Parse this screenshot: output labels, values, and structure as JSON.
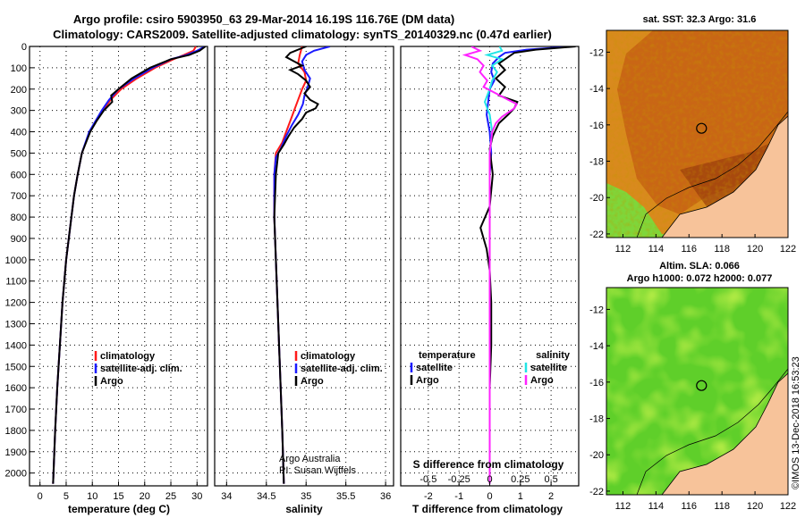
{
  "header": {
    "line1": "Argo profile: csiro 5903950_63 29-Mar-2014 16.19S 116.76E (DM data)",
    "line2": "Climatology: CARS2009. Satellite-adjusted climatology: synTS_20140329.nc (0.47d earlier)"
  },
  "colors": {
    "argo": "#000000",
    "climatology": "#ff1a1a",
    "satellite": "#1a1aff",
    "sal_satellite": "#22e5e5",
    "sal_argo": "#ff22ff",
    "sea_orange": "#d2691e",
    "land": "#f7c39a",
    "sla_green": "#66cc22"
  },
  "chart_data": [
    {
      "type": "line",
      "name": "temperature",
      "xlabel": "temperature (deg C)",
      "ylabel": "",
      "xlim": [
        -2,
        32
      ],
      "ylim": [
        2060,
        0
      ],
      "xticks": [
        0,
        5,
        10,
        15,
        20,
        25,
        30
      ],
      "yticks": [
        0,
        100,
        200,
        300,
        400,
        500,
        600,
        700,
        800,
        900,
        1000,
        1100,
        1200,
        1300,
        1400,
        1500,
        1600,
        1700,
        1800,
        1900,
        2000
      ],
      "legend": [
        "climatology",
        "satellite-adj. clim.",
        "Argo"
      ],
      "series": [
        {
          "name": "climatology",
          "color": "climatology",
          "depth": [
            0,
            20,
            40,
            60,
            100,
            150,
            200,
            250,
            300,
            400,
            500,
            600,
            700,
            800,
            1000,
            1200,
            1400,
            1600,
            1800,
            2050
          ],
          "values": [
            29.8,
            29.3,
            27.5,
            25.5,
            22.0,
            18.5,
            15.5,
            13.5,
            12.0,
            9.5,
            8.0,
            7.2,
            6.5,
            6.0,
            5.0,
            4.3,
            3.8,
            3.3,
            2.9,
            2.5
          ]
        },
        {
          "name": "satellite-adj. clim.",
          "color": "satellite",
          "depth": [
            0,
            20,
            40,
            60,
            100,
            150,
            200,
            250,
            300,
            400,
            500,
            600,
            700,
            800,
            1000,
            1200,
            1400,
            1600,
            1800,
            2050
          ],
          "values": [
            31.5,
            30.0,
            28.0,
            25.0,
            21.5,
            18.0,
            15.0,
            13.2,
            11.8,
            9.4,
            8.0,
            7.2,
            6.5,
            6.0,
            5.0,
            4.3,
            3.8,
            3.3,
            2.9,
            2.5
          ]
        },
        {
          "name": "Argo",
          "color": "argo",
          "depth": [
            0,
            20,
            40,
            60,
            100,
            150,
            200,
            230,
            260,
            300,
            350,
            400,
            500,
            600,
            700,
            800,
            1000,
            1200,
            1400,
            1600,
            1800,
            2050
          ],
          "values": [
            31.6,
            30.5,
            28.5,
            25.0,
            21.0,
            17.5,
            15.0,
            13.6,
            13.8,
            12.2,
            10.8,
            9.6,
            8.0,
            7.2,
            6.5,
            6.0,
            5.0,
            4.3,
            3.8,
            3.3,
            2.9,
            2.5
          ]
        }
      ]
    },
    {
      "type": "line",
      "name": "salinity",
      "xlabel": "salinity",
      "xlim": [
        33.85,
        36.1
      ],
      "ylim": [
        2060,
        0
      ],
      "xticks": [
        34,
        34.5,
        35,
        35.5,
        36
      ],
      "legend": [
        "climatology",
        "satellite-adj. clim.",
        "Argo"
      ],
      "series": [
        {
          "name": "climatology",
          "color": "climatology",
          "depth": [
            0,
            40,
            80,
            120,
            160,
            200,
            250,
            300,
            350,
            400,
            450,
            500,
            600,
            800,
            1000,
            1200,
            1400,
            1600,
            1800,
            2050
          ],
          "values": [
            34.95,
            34.92,
            34.9,
            34.98,
            35.0,
            34.95,
            34.9,
            34.85,
            34.8,
            34.75,
            34.7,
            34.62,
            34.6,
            34.6,
            34.62,
            34.64,
            34.66,
            34.68,
            34.7,
            34.72
          ]
        },
        {
          "name": "satellite-adj. clim.",
          "color": "satellite",
          "depth": [
            0,
            20,
            40,
            70,
            110,
            150,
            190,
            230,
            270,
            320,
            370,
            420,
            480,
            520,
            600,
            800,
            1000,
            1200,
            1400,
            1600,
            1800,
            2050
          ],
          "values": [
            35.3,
            35.1,
            35.0,
            34.95,
            34.98,
            35.05,
            35.02,
            34.98,
            34.96,
            34.9,
            34.82,
            34.75,
            34.68,
            34.62,
            34.6,
            34.6,
            34.62,
            34.64,
            34.66,
            34.68,
            34.7,
            34.72
          ]
        },
        {
          "name": "Argo",
          "color": "argo",
          "depth": [
            0,
            30,
            50,
            70,
            90,
            110,
            130,
            160,
            190,
            220,
            250,
            270,
            290,
            310,
            340,
            380,
            420,
            460,
            500,
            600,
            800,
            1000,
            1200,
            1400,
            1600,
            1800,
            2050
          ],
          "values": [
            35.0,
            34.8,
            34.75,
            34.85,
            34.95,
            34.8,
            34.9,
            35.0,
            35.05,
            34.98,
            35.05,
            35.15,
            35.12,
            35.0,
            34.95,
            34.85,
            34.78,
            34.72,
            34.65,
            34.62,
            34.6,
            34.62,
            34.64,
            34.66,
            34.68,
            34.7,
            34.72
          ]
        }
      ],
      "credit_line1": "Argo Australia",
      "credit_line2": "PI: Susan Wijffels"
    },
    {
      "type": "line",
      "name": "differences",
      "xlabel": "T difference from climatology",
      "x2label": "S difference from climatology",
      "xlim": [
        -2.9,
        2.9
      ],
      "x2lim": [
        -0.725,
        0.725
      ],
      "ylim": [
        2060,
        0
      ],
      "xticks": [
        -2,
        -1,
        0,
        1,
        2
      ],
      "x2ticks": [
        -0.5,
        -0.25,
        0,
        0.25,
        0.5
      ],
      "x2ticklabels": [
        "-0.5",
        "-0.25",
        "0",
        "0.25",
        "0.5"
      ],
      "legend_left_title": "temperature",
      "legend_right_title": "salinity",
      "legend_left": [
        "satellite",
        "Argo"
      ],
      "legend_right": [
        "satellite",
        "Argo"
      ],
      "series": [
        {
          "name": "T satellite",
          "color": "satellite",
          "axis": "T",
          "depth": [
            0,
            15,
            30,
            50,
            80,
            120,
            160,
            200,
            260,
            320,
            400,
            500,
            600,
            800,
            1000,
            1200,
            1500,
            1800,
            2050
          ],
          "values": [
            2.7,
            1.2,
            0.5,
            0.3,
            0.1,
            0.05,
            0.15,
            0.0,
            -0.05,
            -0.1,
            0.0,
            0.05,
            0.0,
            0.0,
            0.0,
            0.0,
            0.0,
            0.0,
            0.0
          ]
        },
        {
          "name": "T Argo",
          "color": "argo",
          "axis": "T",
          "depth": [
            0,
            15,
            30,
            50,
            80,
            110,
            150,
            190,
            230,
            260,
            290,
            320,
            360,
            420,
            480,
            600,
            750,
            850,
            950,
            1050,
            1200,
            1400,
            1600,
            1800,
            2050
          ],
          "values": [
            2.8,
            1.5,
            0.8,
            0.6,
            0.3,
            0.5,
            0.2,
            0.5,
            0.3,
            0.9,
            0.8,
            0.6,
            0.3,
            0.1,
            0.0,
            0.1,
            0.0,
            -0.3,
            -0.1,
            0.0,
            0.05,
            0.05,
            0.0,
            0.0,
            0.0
          ]
        },
        {
          "name": "S satellite",
          "color": "sal_satellite",
          "axis": "S",
          "depth": [
            0,
            20,
            40,
            60,
            90,
            120,
            160,
            200,
            260,
            320,
            400,
            500,
            700,
            1000,
            1500,
            2050
          ],
          "values": [
            0.08,
            0.1,
            -0.02,
            0.1,
            0.02,
            0.06,
            0.02,
            0.0,
            -0.04,
            0.0,
            0.02,
            0.0,
            0.0,
            0.0,
            0.0,
            0.0
          ]
        },
        {
          "name": "S Argo",
          "color": "sal_argo",
          "axis": "S",
          "depth": [
            0,
            20,
            40,
            60,
            90,
            120,
            160,
            190,
            220,
            250,
            270,
            290,
            310,
            330,
            360,
            400,
            450,
            500,
            600,
            800,
            1000,
            1500,
            2050
          ],
          "values": [
            -0.15,
            -0.08,
            -0.2,
            -0.1,
            -0.05,
            -0.08,
            -0.02,
            -0.05,
            0.05,
            0.15,
            0.22,
            0.2,
            0.15,
            0.1,
            0.05,
            0.02,
            0.01,
            0.0,
            0.0,
            0.0,
            0.0,
            0.0,
            0.0
          ]
        }
      ]
    },
    {
      "type": "heatmap",
      "name": "sst_map",
      "title": "sat. SST: 32.3  Argo: 31.6",
      "xticks": [
        112,
        114,
        116,
        118,
        120,
        122
      ],
      "yticks": [
        -12,
        -14,
        -16,
        -18,
        -20,
        -22
      ],
      "xlim": [
        111,
        122
      ],
      "ylim": [
        -22.2,
        -10.8
      ],
      "float_position": [
        116.76,
        -16.19
      ]
    },
    {
      "type": "heatmap",
      "name": "sla_map",
      "title_line1": "Altim. SLA: 0.066",
      "title_line2": "Argo h1000: 0.072 h2000: 0.077",
      "xticks": [
        112,
        114,
        116,
        118,
        120,
        122
      ],
      "yticks": [
        -12,
        -14,
        -16,
        -18,
        -20,
        -22
      ],
      "xlim": [
        111,
        122
      ],
      "ylim": [
        -22.2,
        -10.8
      ],
      "float_position": [
        116.76,
        -16.19
      ]
    }
  ],
  "footer": {
    "imos_credit": "©IMOS 13-Dec-2018 16:53:23"
  }
}
